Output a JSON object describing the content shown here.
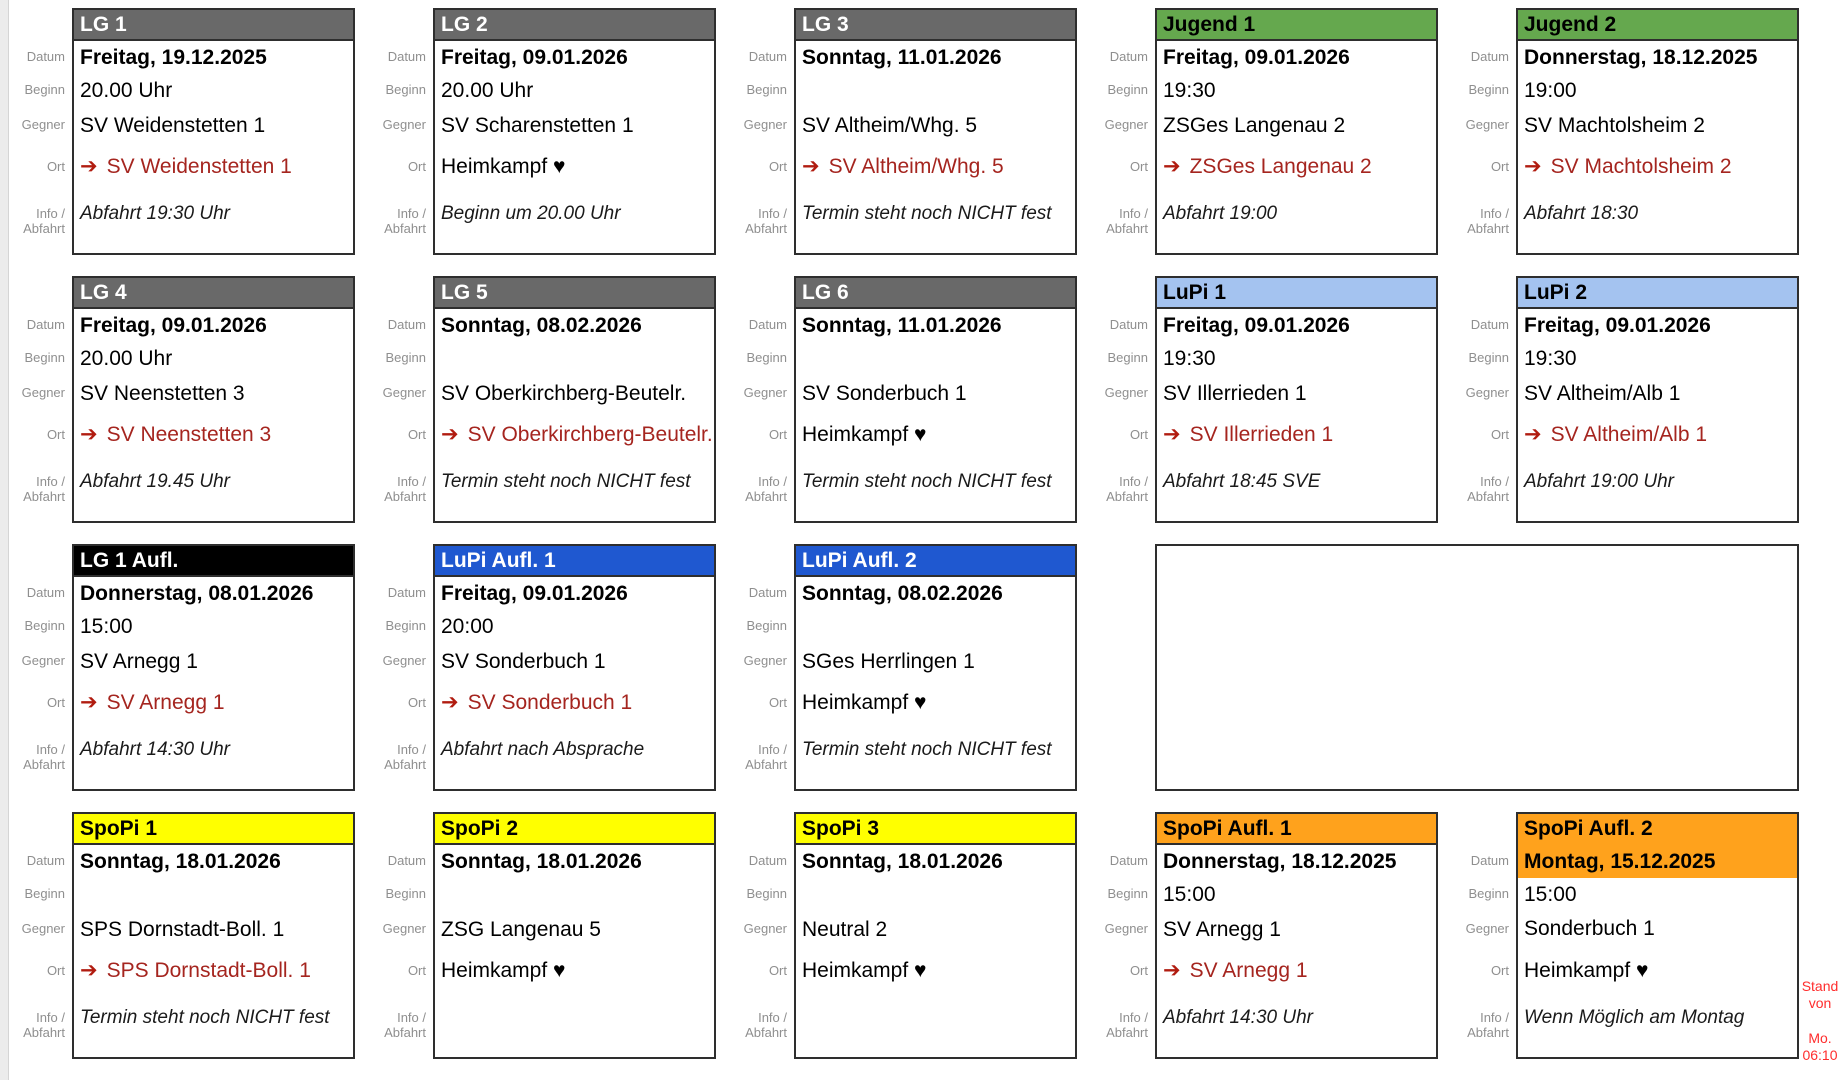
{
  "page": {
    "stand_note_line1": "Stand von",
    "stand_note_line2": "Mo. 06:10",
    "stand_note_color": "#ff2d2d"
  },
  "labels": {
    "datum": "Datum",
    "beginn": "Beginn",
    "gegner": "Gegner",
    "ort": "Ort",
    "info_line1": "Info /",
    "info_line2": "Abfahrt"
  },
  "icons": {
    "away_arrow": "➔"
  },
  "colors": {
    "header_gray": "#696969",
    "header_green": "#65a84e",
    "header_lightblue": "#a4c3f0",
    "header_blue": "#1f58d0",
    "header_black": "#000000",
    "header_yellow": "#ffff00",
    "header_orange": "#ffa21c",
    "away_red": "#a5251f",
    "card_border": "#2e2e2e"
  },
  "cards": [
    {
      "title": "LG 1",
      "header_bg": "#696969",
      "header_fg": "#ffffff",
      "datum": "Freitag, 19.12.2025",
      "beginn": "20.00 Uhr",
      "gegner": "SV Weidenstetten 1",
      "ort_type": "away",
      "ort": "SV Weidenstetten 1",
      "info": "Abfahrt 19:30 Uhr"
    },
    {
      "title": "LG 2",
      "header_bg": "#696969",
      "header_fg": "#ffffff",
      "datum": "Freitag, 09.01.2026",
      "beginn": "20.00 Uhr",
      "gegner": "SV Scharenstetten 1",
      "ort_type": "home",
      "ort": "Heimkampf ♥",
      "info": "Beginn um 20.00 Uhr"
    },
    {
      "title": "LG 3",
      "header_bg": "#696969",
      "header_fg": "#ffffff",
      "datum": "Sonntag, 11.01.2026",
      "beginn": "",
      "gegner": "SV Altheim/Whg. 5",
      "ort_type": "away",
      "ort": "SV Altheim/Whg. 5",
      "info": "Termin steht noch NICHT fest"
    },
    {
      "title": "Jugend 1",
      "header_bg": "#65a84e",
      "header_fg": "#000000",
      "datum": "Freitag, 09.01.2026",
      "beginn": "19:30",
      "gegner": "ZSGes Langenau 2",
      "ort_type": "away",
      "ort": "ZSGes Langenau 2",
      "info": "Abfahrt 19:00"
    },
    {
      "title": "Jugend 2",
      "header_bg": "#65a84e",
      "header_fg": "#000000",
      "datum": "Donnerstag, 18.12.2025",
      "beginn": "19:00",
      "gegner": "SV Machtolsheim 2",
      "ort_type": "away",
      "ort": "SV Machtolsheim 2",
      "info": "Abfahrt 18:30"
    },
    {
      "title": "LG 4",
      "header_bg": "#696969",
      "header_fg": "#ffffff",
      "datum": "Freitag, 09.01.2026",
      "beginn": "20.00 Uhr",
      "gegner": "SV Neenstetten 3",
      "ort_type": "away",
      "ort": "SV Neenstetten 3",
      "info": "Abfahrt 19.45 Uhr"
    },
    {
      "title": "LG 5",
      "header_bg": "#696969",
      "header_fg": "#ffffff",
      "datum": "Sonntag, 08.02.2026",
      "beginn": "",
      "gegner": "SV Oberkirchberg-Beutelr.",
      "ort_type": "away",
      "ort": "SV Oberkirchberg-Beutelr.",
      "info": "Termin steht noch NICHT fest"
    },
    {
      "title": "LG 6",
      "header_bg": "#696969",
      "header_fg": "#ffffff",
      "datum": "Sonntag, 11.01.2026",
      "beginn": "",
      "gegner": "SV Sonderbuch 1",
      "ort_type": "home",
      "ort": "Heimkampf ♥",
      "info": "Termin steht noch NICHT fest"
    },
    {
      "title": "LuPi 1",
      "header_bg": "#a4c3f0",
      "header_fg": "#000000",
      "datum": "Freitag, 09.01.2026",
      "beginn": "19:30",
      "gegner": "SV Illerrieden 1",
      "ort_type": "away",
      "ort": "SV Illerrieden 1",
      "info": "Abfahrt 18:45 SVE"
    },
    {
      "title": "LuPi 2",
      "header_bg": "#a4c3f0",
      "header_fg": "#000000",
      "datum": "Freitag, 09.01.2026",
      "beginn": "19:30",
      "gegner": "SV Altheim/Alb 1",
      "ort_type": "away",
      "ort": "SV Altheim/Alb 1",
      "info": "Abfahrt 19:00 Uhr"
    },
    {
      "title": "LG 1 Aufl.",
      "header_bg": "#000000",
      "header_fg": "#ffffff",
      "datum": "Donnerstag, 08.01.2026",
      "beginn": "15:00",
      "gegner": "SV Arnegg 1",
      "ort_type": "away",
      "ort": "SV Arnegg 1",
      "info": "Abfahrt 14:30 Uhr"
    },
    {
      "title": "LuPi Aufl. 1",
      "header_bg": "#1f58d0",
      "header_fg": "#ffffff",
      "datum": "Freitag, 09.01.2026",
      "beginn": "20:00",
      "gegner": "SV Sonderbuch 1",
      "ort_type": "away",
      "ort": "SV Sonderbuch 1",
      "info": "Abfahrt nach Absprache"
    },
    {
      "title": "LuPi Aufl. 2",
      "header_bg": "#1f58d0",
      "header_fg": "#ffffff",
      "datum": "Sonntag, 08.02.2026",
      "beginn": "",
      "gegner": "SGes Herrlingen 1",
      "ort_type": "home",
      "ort": "Heimkampf ♥",
      "info": "Termin steht noch NICHT fest"
    },
    {
      "empty": true,
      "span": 2
    },
    {
      "title": "SpoPi 1",
      "header_bg": "#ffff00",
      "header_fg": "#000000",
      "datum": "Sonntag, 18.01.2026",
      "beginn": "",
      "gegner": "SPS Dornstadt-Boll. 1",
      "ort_type": "away",
      "ort": "SPS Dornstadt-Boll. 1",
      "info": "Termin steht noch NICHT fest"
    },
    {
      "title": "SpoPi 2",
      "header_bg": "#ffff00",
      "header_fg": "#000000",
      "datum": "Sonntag, 18.01.2026",
      "beginn": "",
      "gegner": "ZSG Langenau 5",
      "ort_type": "home",
      "ort": "Heimkampf ♥",
      "info": ""
    },
    {
      "title": "SpoPi 3",
      "header_bg": "#ffff00",
      "header_fg": "#000000",
      "datum": "Sonntag, 18.01.2026",
      "beginn": "",
      "gegner": "Neutral 2",
      "ort_type": "home",
      "ort": "Heimkampf ♥",
      "info": ""
    },
    {
      "title": "SpoPi Aufl. 1",
      "header_bg": "#ffa21c",
      "header_fg": "#000000",
      "datum": "Donnerstag, 18.12.2025",
      "beginn": "15:00",
      "gegner": "SV Arnegg 1",
      "ort_type": "away",
      "ort": "SV Arnegg 1",
      "info": "Abfahrt 14:30 Uhr"
    },
    {
      "title": "SpoPi Aufl. 2",
      "header_bg": "#ffa21c",
      "header_fg": "#000000",
      "datum_highlight": true,
      "datum": "Montag, 15.12.2025",
      "beginn": "15:00",
      "gegner": "Sonderbuch 1",
      "ort_type": "home",
      "ort": "Heimkampf ♥",
      "info": "Wenn Möglich am Montag"
    }
  ]
}
